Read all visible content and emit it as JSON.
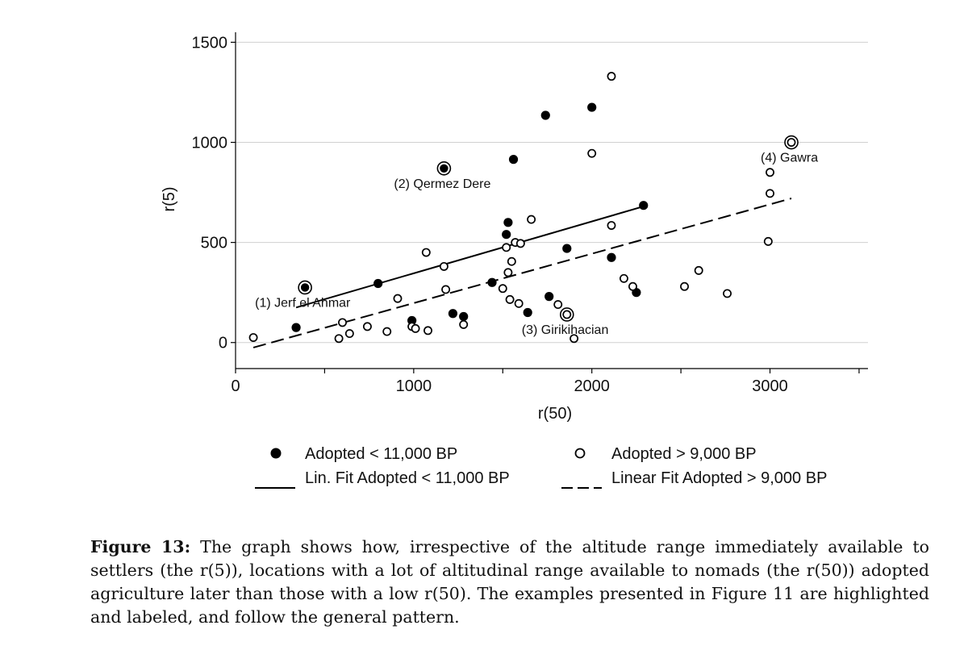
{
  "chart_data": {
    "type": "scatter",
    "xlabel": "r(50)",
    "ylabel": "r(5)",
    "xlim": [
      0,
      3550
    ],
    "ylim": [
      -130,
      1550
    ],
    "xticks": [
      0,
      1000,
      2000,
      3000
    ],
    "yticks": [
      0,
      500,
      1000,
      1500
    ],
    "grid": true,
    "legend_position": "bottom",
    "series": [
      {
        "name": "Adopted < 11,000 BP",
        "marker": "filled-circle",
        "points": [
          [
            340,
            75
          ],
          [
            800,
            295
          ],
          [
            990,
            110
          ],
          [
            1220,
            145
          ],
          [
            1280,
            130
          ],
          [
            1440,
            300
          ],
          [
            1520,
            540
          ],
          [
            1530,
            600
          ],
          [
            1560,
            915
          ],
          [
            1640,
            150
          ],
          [
            1740,
            1135
          ],
          [
            1760,
            230
          ],
          [
            1860,
            470
          ],
          [
            2000,
            1175
          ],
          [
            2110,
            425
          ],
          [
            2250,
            250
          ],
          [
            2290,
            685
          ]
        ]
      },
      {
        "name": "Adopted > 9,000 BP",
        "marker": "hollow-circle",
        "points": [
          [
            100,
            25
          ],
          [
            580,
            20
          ],
          [
            600,
            100
          ],
          [
            640,
            45
          ],
          [
            740,
            80
          ],
          [
            850,
            55
          ],
          [
            910,
            220
          ],
          [
            990,
            80
          ],
          [
            1010,
            70
          ],
          [
            1070,
            450
          ],
          [
            1080,
            60
          ],
          [
            1170,
            380
          ],
          [
            1180,
            265
          ],
          [
            1280,
            90
          ],
          [
            1500,
            270
          ],
          [
            1520,
            475
          ],
          [
            1530,
            350
          ],
          [
            1540,
            215
          ],
          [
            1550,
            405
          ],
          [
            1570,
            500
          ],
          [
            1590,
            195
          ],
          [
            1600,
            495
          ],
          [
            1660,
            615
          ],
          [
            1810,
            190
          ],
          [
            1900,
            20
          ],
          [
            2000,
            945
          ],
          [
            2110,
            1330
          ],
          [
            2110,
            585
          ],
          [
            2180,
            320
          ],
          [
            2230,
            280
          ],
          [
            2520,
            280
          ],
          [
            2600,
            360
          ],
          [
            2760,
            245
          ],
          [
            2990,
            505
          ],
          [
            3000,
            745
          ],
          [
            3000,
            850
          ]
        ]
      },
      {
        "name": "Lin. Fit Adopted < 11,000 BP",
        "style": "solid-line",
        "x": [
          340,
          2290
        ],
        "y": [
          175,
          680
        ]
      },
      {
        "name": "Linear Fit Adopted > 9,000 BP",
        "style": "dashed-line",
        "x": [
          100,
          3120
        ],
        "y": [
          -25,
          720
        ]
      }
    ],
    "highlights": [
      {
        "label": "(1) Jerf el Ahmar",
        "x": 390,
        "y": 275,
        "filled": true
      },
      {
        "label": "(2) Qermez Dere",
        "x": 1170,
        "y": 870,
        "filled": true
      },
      {
        "label": "(3) Girikihacian",
        "x": 1860,
        "y": 140,
        "filled": false
      },
      {
        "label": "(4) Gawra",
        "x": 3120,
        "y": 1000,
        "filled": false
      }
    ]
  },
  "legend": {
    "items": [
      {
        "label": "Adopted < 11,000 BP",
        "symbol": "filled-circle"
      },
      {
        "label": "Lin. Fit Adopted < 11,000 BP",
        "symbol": "solid-line"
      },
      {
        "label": "Adopted > 9,000 BP",
        "symbol": "hollow-circle"
      },
      {
        "label": "Linear Fit Adopted > 9,000 BP",
        "symbol": "dashed-line"
      }
    ]
  },
  "caption": {
    "label": "Figure 13:",
    "text": "The graph shows how, irrespective of the altitude range immediately available to settlers (the r(5)), locations with a lot of altitudinal range available to nomads (the r(50)) adopted agriculture later than those with a low r(50). The examples presented in Figure 11 are highlighted and labeled, and follow the general pattern."
  }
}
